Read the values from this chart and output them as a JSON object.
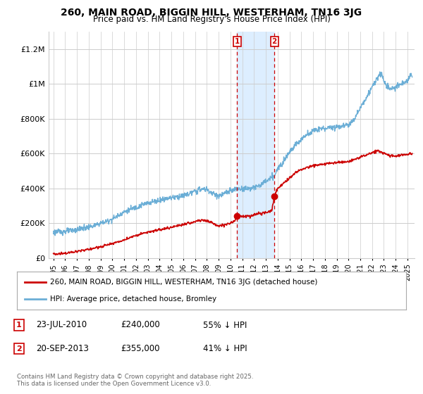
{
  "title": "260, MAIN ROAD, BIGGIN HILL, WESTERHAM, TN16 3JG",
  "subtitle": "Price paid vs. HM Land Registry's House Price Index (HPI)",
  "ylabel_ticks": [
    "£0",
    "£200K",
    "£400K",
    "£600K",
    "£800K",
    "£1M",
    "£1.2M"
  ],
  "ylabel_values": [
    0,
    200000,
    400000,
    600000,
    800000,
    1000000,
    1200000
  ],
  "ylim": [
    0,
    1300000
  ],
  "xlim_start": 1994.6,
  "xlim_end": 2025.6,
  "transaction1": {
    "date": 2010.55,
    "price": 240000,
    "label": "1"
  },
  "transaction2": {
    "date": 2013.72,
    "price": 355000,
    "label": "2"
  },
  "t1_date_str": "23-JUL-2010",
  "t1_price_str": "£240,000",
  "t1_pct_str": "55% ↓ HPI",
  "t2_date_str": "20-SEP-2013",
  "t2_price_str": "£355,000",
  "t2_pct_str": "41% ↓ HPI",
  "legend_line1": "260, MAIN ROAD, BIGGIN HILL, WESTERHAM, TN16 3JG (detached house)",
  "legend_line2": "HPI: Average price, detached house, Bromley",
  "copyright": "Contains HM Land Registry data © Crown copyright and database right 2025.\nThis data is licensed under the Open Government Licence v3.0.",
  "red_color": "#cc0000",
  "blue_color": "#6baed6",
  "shading_color": "#ddeeff",
  "background_color": "#ffffff",
  "grid_color": "#cccccc"
}
